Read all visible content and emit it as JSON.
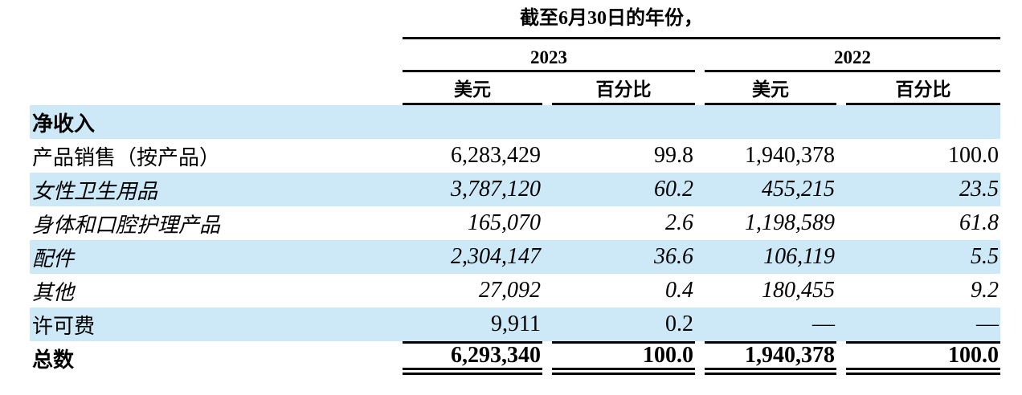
{
  "header": {
    "period_title": "截至6月30日的年份，",
    "groups": [
      {
        "year": "2023",
        "cols": [
          "美元",
          "百分比"
        ]
      },
      {
        "year": "2022",
        "cols": [
          "美元",
          "百分比"
        ]
      }
    ]
  },
  "rows": [
    {
      "label": "净收入",
      "style": "section",
      "values": [
        "",
        "",
        "",
        ""
      ]
    },
    {
      "label": "产品销售（按产品）",
      "style": "regular",
      "values": [
        "6,283,429",
        "99.8",
        "1,940,378",
        "100.0"
      ]
    },
    {
      "label": "女性卫生用品",
      "style": "italic",
      "values": [
        "3,787,120",
        "60.2",
        "455,215",
        "23.5"
      ]
    },
    {
      "label": "身体和口腔护理产品",
      "style": "italic",
      "values": [
        "165,070",
        "2.6",
        "1,198,589",
        "61.8"
      ]
    },
    {
      "label": "配件",
      "style": "italic",
      "values": [
        "2,304,147",
        "36.6",
        "106,119",
        "5.5"
      ]
    },
    {
      "label": "其他",
      "style": "italic",
      "values": [
        "27,092",
        "0.4",
        "180,455",
        "9.2"
      ]
    },
    {
      "label": "许可费",
      "style": "regular",
      "values": [
        "9,911",
        "0.2",
        "—",
        "—"
      ]
    },
    {
      "label": "总数",
      "style": "total",
      "values": [
        "6,293,340",
        "100.0",
        "1,940,378",
        "100.0"
      ]
    }
  ],
  "colors": {
    "row_highlight": "#cde9f8",
    "text": "#000000",
    "rule": "#000000"
  }
}
